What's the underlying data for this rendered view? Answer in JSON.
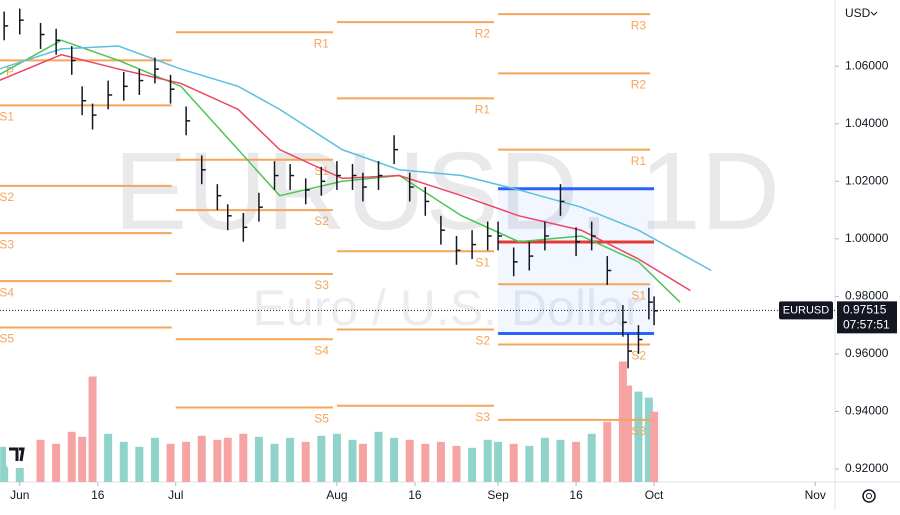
{
  "chart_data": {
    "type": "ohlc",
    "title": "EURUSD, 1D",
    "subtitle": "Euro / U.S. Dollar",
    "symbol": "EURUSD",
    "currency": "USD",
    "countdown": "07:57:51",
    "last_price": 0.97515,
    "xlim": [
      -3.8,
      156.8
    ],
    "ylim": [
      0.9155,
      1.083
    ],
    "y2lim": [
      0,
      480
    ],
    "xticks": [
      {
        "value": 0,
        "label": "Jun"
      },
      {
        "value": 15,
        "label": "16"
      },
      {
        "value": 30,
        "label": "Jul"
      },
      {
        "value": 61,
        "label": "Aug"
      },
      {
        "value": 76,
        "label": "16"
      },
      {
        "value": 92,
        "label": "Sep"
      },
      {
        "value": 107,
        "label": "16"
      },
      {
        "value": 122,
        "label": "Oct"
      },
      {
        "value": 153,
        "label": "Nov"
      }
    ],
    "yticks": [
      {
        "value": 0.92,
        "label": "0.92000"
      },
      {
        "value": 0.94,
        "label": "0.94000"
      },
      {
        "value": 0.96,
        "label": "0.96000"
      },
      {
        "value": 0.98,
        "label": "0.98000"
      },
      {
        "value": 1.0,
        "label": "1.00000"
      },
      {
        "value": 1.02,
        "label": "1.02000"
      },
      {
        "value": 1.04,
        "label": "1.04000"
      },
      {
        "value": 1.06,
        "label": "1.06000"
      }
    ],
    "bars": {
      "color": "#131722",
      "x": [
        -3,
        0,
        4,
        7,
        10,
        12,
        14,
        17,
        20,
        23,
        26,
        29,
        32,
        35,
        38,
        40,
        43,
        46,
        49,
        52,
        55,
        58,
        61,
        64,
        66,
        69,
        72,
        75,
        78,
        81,
        84,
        87,
        90,
        92,
        95,
        98,
        101,
        104,
        107,
        110,
        113,
        116,
        117,
        119,
        121,
        122
      ],
      "high": [
        1.079,
        1.08,
        1.075,
        1.073,
        1.067,
        1.053,
        1.047,
        1.055,
        1.058,
        1.059,
        1.063,
        1.057,
        1.046,
        1.029,
        1.019,
        1.012,
        1.009,
        1.016,
        1.027,
        1.026,
        1.021,
        1.025,
        1.027,
        1.026,
        1.023,
        1.027,
        1.036,
        1.023,
        1.018,
        1.008,
        1.001,
        1.003,
        1.006,
        1.006,
        0.997,
        0.999,
        1.006,
        1.019,
        1.004,
        1.006,
        0.994,
        0.977,
        0.967,
        0.97,
        0.983,
        0.98
      ],
      "low": [
        1.069,
        1.071,
        1.066,
        1.064,
        1.057,
        1.043,
        1.038,
        1.045,
        1.048,
        1.05,
        1.054,
        1.047,
        1.036,
        1.019,
        1.01,
        1.003,
        0.999,
        1.006,
        1.017,
        1.017,
        1.012,
        1.015,
        1.017,
        1.017,
        1.013,
        1.017,
        1.026,
        1.013,
        1.008,
        0.998,
        0.991,
        0.993,
        0.996,
        0.996,
        0.987,
        0.989,
        0.996,
        1.008,
        0.994,
        0.996,
        0.984,
        0.966,
        0.955,
        0.96,
        0.972,
        0.97
      ],
      "close": [
        1.074,
        1.076,
        1.071,
        1.069,
        1.062,
        1.048,
        1.043,
        1.05,
        1.053,
        1.055,
        1.059,
        1.052,
        1.041,
        1.024,
        1.015,
        1.008,
        1.004,
        1.011,
        1.022,
        1.022,
        1.017,
        1.02,
        1.022,
        1.022,
        1.018,
        1.022,
        1.031,
        1.018,
        1.013,
        1.003,
        0.996,
        0.998,
        1.001,
        1.001,
        0.992,
        0.994,
        1.001,
        1.013,
        0.999,
        1.001,
        0.989,
        0.971,
        0.961,
        0.965,
        0.978,
        0.975
      ],
      "volume": [
        35,
        30,
        42,
        38,
        50,
        45,
        105,
        48,
        40,
        35,
        44,
        38,
        40,
        46,
        42,
        44,
        48,
        45,
        38,
        44,
        40,
        46,
        48,
        42,
        38,
        50,
        44,
        42,
        38,
        40,
        36,
        34,
        42,
        40,
        38,
        36,
        44,
        42,
        40,
        48,
        60,
        120,
        96,
        90,
        84,
        70
      ]
    },
    "volume_up_color": "#8fd3cb",
    "volume_down_color": "#f5a3a3",
    "series": [
      {
        "color": "#4cc552",
        "x": [
          -4,
          8,
          19,
          31,
          42,
          50,
          62,
          73,
          85,
          96,
          108,
          119,
          127
        ],
        "values": [
          1.057,
          1.069,
          1.062,
          1.053,
          1.031,
          1.015,
          1.02,
          1.022,
          1.008,
          0.999,
          1.001,
          0.992,
          0.978
        ]
      },
      {
        "color": "#ee4466",
        "x": [
          -4,
          8,
          19,
          31,
          42,
          50,
          62,
          73,
          85,
          96,
          108,
          119,
          129
        ],
        "values": [
          1.055,
          1.064,
          1.059,
          1.054,
          1.045,
          1.031,
          1.021,
          1.022,
          1.015,
          1.008,
          1.003,
          0.993,
          0.982
        ]
      },
      {
        "color": "#5bc0de",
        "x": [
          -4,
          8,
          19,
          31,
          42,
          50,
          62,
          73,
          85,
          96,
          108,
          119,
          133
        ],
        "values": [
          1.059,
          1.066,
          1.067,
          1.059,
          1.053,
          1.045,
          1.031,
          1.024,
          1.022,
          1.017,
          1.011,
          1.003,
          0.989
        ]
      }
    ],
    "pivot_color": "#f5a55a",
    "pivots": [
      {
        "label": "P",
        "x": [
          -4,
          30
        ],
        "value": 1.062
      },
      {
        "label": "S1",
        "x": [
          -4,
          30
        ],
        "value": 1.0464
      },
      {
        "label": "S2",
        "x": [
          -4,
          30
        ],
        "value": 1.0184
      },
      {
        "label": "S3",
        "x": [
          -4,
          30
        ],
        "value": 1.002
      },
      {
        "label": "S4",
        "x": [
          -4,
          30
        ],
        "value": 0.9853
      },
      {
        "label": "S5",
        "x": [
          -4,
          30
        ],
        "value": 0.9692
      },
      {
        "label": "R1",
        "x": [
          30,
          61
        ],
        "value": 1.0718
      },
      {
        "label": "S1",
        "x": [
          30,
          61
        ],
        "value": 1.0275
      },
      {
        "label": "S2",
        "x": [
          30,
          61
        ],
        "value": 1.01
      },
      {
        "label": "S3",
        "x": [
          30,
          61
        ],
        "value": 0.9878
      },
      {
        "label": "S4",
        "x": [
          30,
          61
        ],
        "value": 0.9651
      },
      {
        "label": "S5",
        "x": [
          30,
          61
        ],
        "value": 0.9414
      },
      {
        "label": "R2",
        "x": [
          61,
          92
        ],
        "value": 1.0753
      },
      {
        "label": "R1",
        "x": [
          61,
          92
        ],
        "value": 1.0488
      },
      {
        "label": "S1",
        "x": [
          61,
          92
        ],
        "value": 0.9957
      },
      {
        "label": "S2",
        "x": [
          61,
          92
        ],
        "value": 0.9685
      },
      {
        "label": "S3",
        "x": [
          61,
          92
        ],
        "value": 0.942
      },
      {
        "label": "R3",
        "x": [
          92,
          122
        ],
        "value": 1.0781
      },
      {
        "label": "R2",
        "x": [
          92,
          122
        ],
        "value": 1.0575
      },
      {
        "label": "R1",
        "x": [
          92,
          122
        ],
        "value": 1.031
      },
      {
        "label": "S1",
        "x": [
          92,
          122
        ],
        "value": 0.9842
      },
      {
        "label": "S2",
        "x": [
          92,
          122
        ],
        "value": 0.9633
      },
      {
        "label": "S3",
        "x": [
          92,
          122
        ],
        "value": 0.9371
      }
    ],
    "range_box": {
      "x": [
        92,
        122
      ],
      "high": 1.0174,
      "low": 0.9671,
      "poc": 0.9989
    }
  }
}
